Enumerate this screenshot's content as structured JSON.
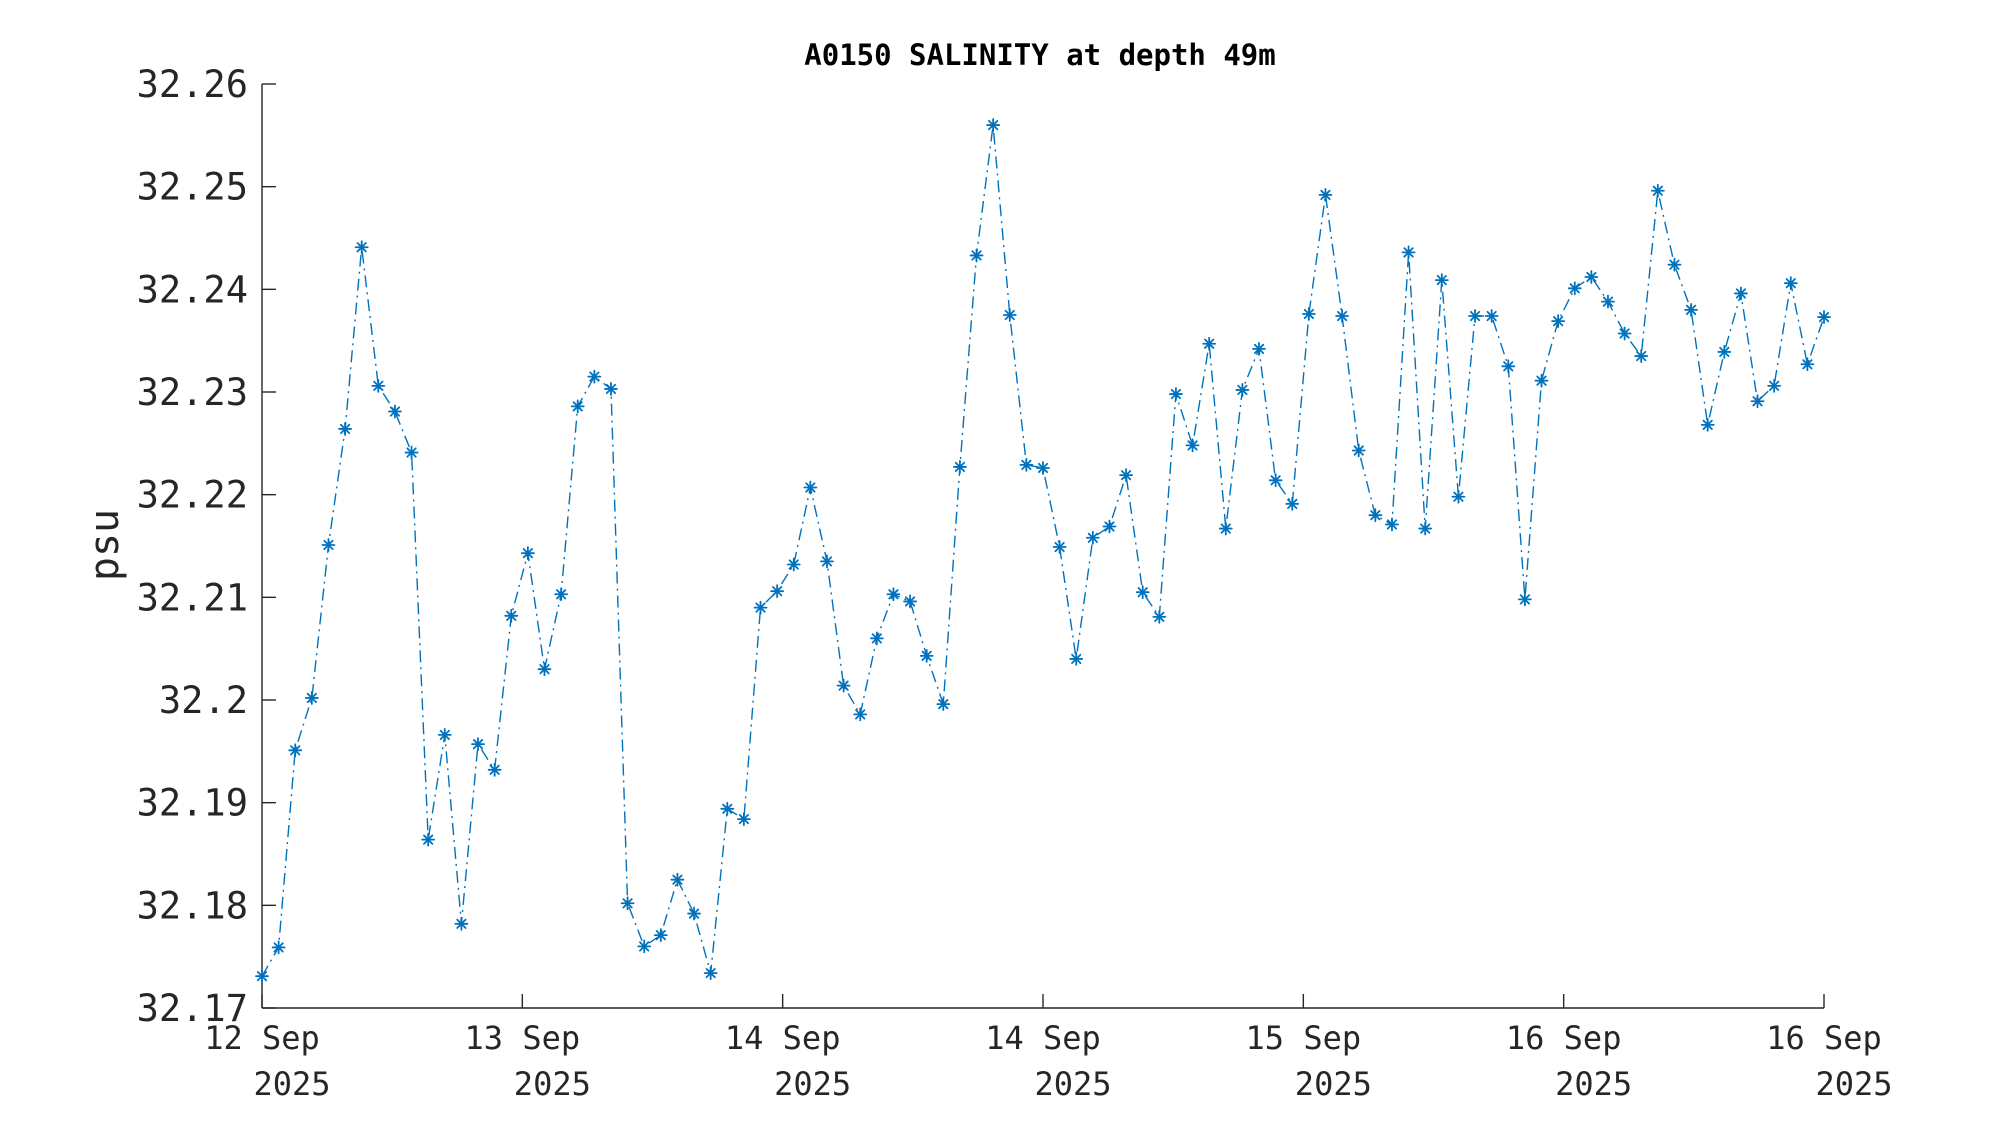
{
  "chart_data": {
    "type": "line",
    "title": "A0150 SALINITY at depth 49m",
    "xlabel": "",
    "ylabel": "psu",
    "ylim": [
      32.17,
      32.26
    ],
    "y_ticks": [
      "32.17",
      "32.18",
      "32.19",
      "32.2",
      "32.21",
      "32.22",
      "32.23",
      "32.24",
      "32.25",
      "32.26"
    ],
    "x_ticks": [
      {
        "day": "12 Sep",
        "year": "2025"
      },
      {
        "day": "13 Sep",
        "year": "2025"
      },
      {
        "day": "14 Sep",
        "year": "2025"
      },
      {
        "day": "14 Sep",
        "year": "2025"
      },
      {
        "day": "15 Sep",
        "year": "2025"
      },
      {
        "day": "16 Sep",
        "year": "2025"
      },
      {
        "day": "16 Sep",
        "year": "2025"
      }
    ],
    "grid": false,
    "marker": "asterisk",
    "line_style": "dash-dot",
    "color": "#0072BD",
    "series": [
      {
        "values": [
          32.1731,
          32.1759,
          32.1951,
          32.2002,
          32.2151,
          32.2264,
          32.2441,
          32.2306,
          32.2281,
          32.2241,
          32.1864,
          32.1966,
          32.1782,
          32.1957,
          32.1932,
          32.2082,
          32.2143,
          32.203,
          32.2103,
          32.2286,
          32.2315,
          32.2303,
          32.1802,
          32.176,
          32.1771,
          32.1825,
          32.1792,
          32.1734,
          32.1894,
          32.1884,
          32.209,
          32.2106,
          32.2132,
          32.2207,
          32.2135,
          32.2014,
          32.1986,
          32.206,
          32.2103,
          32.2096,
          32.2043,
          32.1996,
          32.2227,
          32.2433,
          32.256,
          32.2375,
          32.2229,
          32.2226,
          32.2149,
          32.204,
          32.2158,
          32.2169,
          32.2219,
          32.2105,
          32.2081,
          32.2298,
          32.2248,
          32.2347,
          32.2167,
          32.2302,
          32.2342,
          32.2214,
          32.2191,
          32.2376,
          32.2492,
          32.2374,
          32.2243,
          32.218,
          32.2171,
          32.2436,
          32.2167,
          32.2409,
          32.2198,
          32.2374,
          32.2374,
          32.2325,
          32.2098,
          32.2311,
          32.2369,
          32.2401,
          32.2412,
          32.2388,
          32.2357,
          32.2335,
          32.2496,
          32.2424,
          32.238,
          32.2268,
          32.2339,
          32.2396,
          32.2291,
          32.2306,
          32.2406,
          32.2327,
          32.2373
        ]
      }
    ]
  }
}
